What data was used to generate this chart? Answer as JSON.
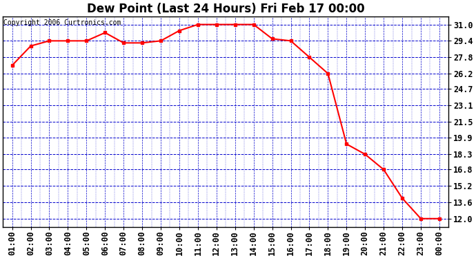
{
  "title": "Dew Point (Last 24 Hours) Fri Feb 17 00:00",
  "copyright": "Copyright 2006 Curtronics.com",
  "x_labels": [
    "01:00",
    "02:00",
    "03:00",
    "04:00",
    "05:00",
    "06:00",
    "07:00",
    "08:00",
    "09:00",
    "10:00",
    "11:00",
    "12:00",
    "13:00",
    "14:00",
    "15:00",
    "16:00",
    "17:00",
    "18:00",
    "19:00",
    "20:00",
    "21:00",
    "22:00",
    "23:00",
    "00:00"
  ],
  "y_values": [
    27.0,
    28.9,
    29.4,
    29.4,
    29.4,
    30.2,
    29.2,
    29.2,
    29.4,
    30.4,
    31.0,
    31.0,
    31.0,
    31.0,
    29.6,
    29.4,
    27.8,
    26.2,
    19.3,
    18.3,
    16.8,
    14.0,
    12.0,
    12.0
  ],
  "y_ticks": [
    12.0,
    13.6,
    15.2,
    16.8,
    18.3,
    19.9,
    21.5,
    23.1,
    24.7,
    26.2,
    27.8,
    29.4,
    31.0
  ],
  "ylim_min": 11.2,
  "ylim_max": 31.8,
  "line_color": "red",
  "marker": "s",
  "marker_size": 3.5,
  "plot_bg_color": "#ffffff",
  "fig_bg_color": "#ffffff",
  "grid_color": "#0000cc",
  "title_fontsize": 12,
  "tick_fontsize": 8.5,
  "copyright_fontsize": 7
}
